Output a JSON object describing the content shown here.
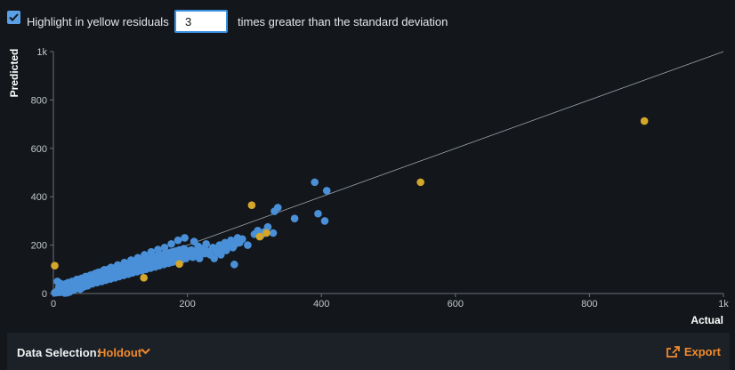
{
  "toolbar": {
    "highlight_checked": true,
    "highlight_label": "Highlight in yellow residuals",
    "sd_value": "3",
    "sd_suffix": "times greater than the standard deviation"
  },
  "footer": {
    "data_selection_label": "Data Selection:",
    "data_selection_value": "Holdout",
    "export_label": "Export",
    "accent_color": "#f08a2c"
  },
  "chart_data": {
    "type": "scatter",
    "title": "",
    "xlabel": "Actual",
    "ylabel": "Predicted",
    "xlim": [
      0,
      1000
    ],
    "ylim": [
      0,
      1000
    ],
    "x_ticks": [
      "0",
      "200",
      "400",
      "600",
      "800",
      "1k"
    ],
    "y_ticks": [
      "0",
      "200",
      "400",
      "600",
      "800",
      "1k"
    ],
    "grid": false,
    "reference_line": {
      "from": [
        0,
        0
      ],
      "to": [
        1000,
        1000
      ]
    },
    "series": [
      {
        "color": "#4a90d9",
        "points": [
          [
            2,
            3
          ],
          [
            3,
            6
          ],
          [
            5,
            4
          ],
          [
            6,
            10
          ],
          [
            8,
            7
          ],
          [
            9,
            14
          ],
          [
            10,
            5
          ],
          [
            12,
            11
          ],
          [
            13,
            18
          ],
          [
            14,
            9
          ],
          [
            15,
            15
          ],
          [
            16,
            22
          ],
          [
            18,
            12
          ],
          [
            19,
            20
          ],
          [
            20,
            26
          ],
          [
            21,
            16
          ],
          [
            22,
            30
          ],
          [
            23,
            19
          ],
          [
            24,
            24
          ],
          [
            25,
            34
          ],
          [
            26,
            21
          ],
          [
            27,
            29
          ],
          [
            28,
            38
          ],
          [
            29,
            25
          ],
          [
            30,
            33
          ],
          [
            31,
            42
          ],
          [
            32,
            28
          ],
          [
            33,
            37
          ],
          [
            34,
            46
          ],
          [
            35,
            31
          ],
          [
            36,
            40
          ],
          [
            37,
            50
          ],
          [
            38,
            34
          ],
          [
            39,
            44
          ],
          [
            40,
            54
          ],
          [
            41,
            37
          ],
          [
            42,
            48
          ],
          [
            43,
            58
          ],
          [
            44,
            41
          ],
          [
            45,
            52
          ],
          [
            46,
            62
          ],
          [
            47,
            44
          ],
          [
            48,
            55
          ],
          [
            49,
            66
          ],
          [
            50,
            47
          ],
          [
            52,
            60
          ],
          [
            54,
            68
          ],
          [
            55,
            50
          ],
          [
            56,
            64
          ],
          [
            58,
            72
          ],
          [
            60,
            55
          ],
          [
            62,
            70
          ],
          [
            64,
            77
          ],
          [
            65,
            58
          ],
          [
            66,
            74
          ],
          [
            68,
            82
          ],
          [
            70,
            62
          ],
          [
            72,
            78
          ],
          [
            74,
            86
          ],
          [
            75,
            66
          ],
          [
            76,
            82
          ],
          [
            78,
            90
          ],
          [
            80,
            70
          ],
          [
            82,
            86
          ],
          [
            84,
            95
          ],
          [
            85,
            73
          ],
          [
            86,
            90
          ],
          [
            88,
            99
          ],
          [
            90,
            78
          ],
          [
            92,
            94
          ],
          [
            94,
            103
          ],
          [
            95,
            82
          ],
          [
            96,
            98
          ],
          [
            98,
            108
          ],
          [
            100,
            86
          ],
          [
            102,
            102
          ],
          [
            104,
            112
          ],
          [
            105,
            90
          ],
          [
            106,
            106
          ],
          [
            108,
            116
          ],
          [
            110,
            94
          ],
          [
            112,
            110
          ],
          [
            114,
            120
          ],
          [
            115,
            98
          ],
          [
            116,
            114
          ],
          [
            118,
            124
          ],
          [
            120,
            102
          ],
          [
            122,
            118
          ],
          [
            124,
            128
          ],
          [
            125,
            106
          ],
          [
            126,
            122
          ],
          [
            128,
            132
          ],
          [
            130,
            110
          ],
          [
            132,
            126
          ],
          [
            134,
            136
          ],
          [
            135,
            114
          ],
          [
            136,
            130
          ],
          [
            138,
            140
          ],
          [
            140,
            118
          ],
          [
            142,
            134
          ],
          [
            144,
            144
          ],
          [
            145,
            122
          ],
          [
            146,
            138
          ],
          [
            148,
            148
          ],
          [
            150,
            126
          ],
          [
            152,
            142
          ],
          [
            154,
            152
          ],
          [
            155,
            130
          ],
          [
            156,
            146
          ],
          [
            158,
            156
          ],
          [
            160,
            134
          ],
          [
            162,
            150
          ],
          [
            164,
            160
          ],
          [
            165,
            138
          ],
          [
            166,
            154
          ],
          [
            168,
            164
          ],
          [
            170,
            142
          ],
          [
            172,
            158
          ],
          [
            174,
            168
          ],
          [
            175,
            146
          ],
          [
            176,
            162
          ],
          [
            178,
            172
          ],
          [
            180,
            150
          ],
          [
            182,
            166
          ],
          [
            184,
            176
          ],
          [
            185,
            154
          ],
          [
            186,
            170
          ],
          [
            188,
            180
          ],
          [
            190,
            158
          ],
          [
            192,
            174
          ],
          [
            194,
            184
          ],
          [
            196,
            162
          ],
          [
            198,
            178
          ],
          [
            8,
            25
          ],
          [
            12,
            28
          ],
          [
            15,
            32
          ],
          [
            18,
            40
          ],
          [
            22,
            45
          ],
          [
            25,
            20
          ],
          [
            28,
            50
          ],
          [
            32,
            18
          ],
          [
            35,
            58
          ],
          [
            38,
            25
          ],
          [
            42,
            63
          ],
          [
            45,
            30
          ],
          [
            48,
            70
          ],
          [
            52,
            35
          ],
          [
            55,
            75
          ],
          [
            58,
            40
          ],
          [
            62,
            82
          ],
          [
            65,
            45
          ],
          [
            68,
            88
          ],
          [
            72,
            50
          ],
          [
            75,
            95
          ],
          [
            78,
            55
          ],
          [
            82,
            100
          ],
          [
            85,
            60
          ],
          [
            88,
            105
          ],
          [
            92,
            65
          ],
          [
            95,
            110
          ],
          [
            98,
            70
          ],
          [
            102,
            115
          ],
          [
            105,
            75
          ],
          [
            108,
            120
          ],
          [
            112,
            80
          ],
          [
            115,
            125
          ],
          [
            118,
            85
          ],
          [
            122,
            130
          ],
          [
            125,
            90
          ],
          [
            128,
            135
          ],
          [
            132,
            95
          ],
          [
            135,
            140
          ],
          [
            138,
            100
          ],
          [
            142,
            145
          ],
          [
            145,
            105
          ],
          [
            148,
            150
          ],
          [
            152,
            110
          ],
          [
            155,
            155
          ],
          [
            158,
            115
          ],
          [
            162,
            160
          ],
          [
            165,
            120
          ],
          [
            168,
            165
          ],
          [
            172,
            125
          ],
          [
            175,
            170
          ],
          [
            178,
            130
          ],
          [
            182,
            175
          ],
          [
            185,
            135
          ],
          [
            188,
            180
          ],
          [
            192,
            140
          ],
          [
            195,
            185
          ],
          [
            198,
            145
          ],
          [
            6,
            50
          ],
          [
            10,
            42
          ],
          [
            14,
            8
          ],
          [
            17,
            2
          ],
          [
            20,
            3
          ],
          [
            24,
            6
          ],
          [
            27,
            12
          ],
          [
            30,
            14
          ],
          [
            33,
            20
          ],
          [
            36,
            22
          ],
          [
            40,
            18
          ],
          [
            44,
            26
          ],
          [
            47,
            30
          ],
          [
            51,
            32
          ],
          [
            54,
            40
          ],
          [
            57,
            44
          ],
          [
            61,
            48
          ],
          [
            64,
            52
          ],
          [
            67,
            56
          ],
          [
            70,
            60
          ],
          [
            73,
            64
          ],
          [
            77,
            68
          ],
          [
            80,
            74
          ],
          [
            83,
            78
          ],
          [
            87,
            84
          ],
          [
            91,
            88
          ],
          [
            94,
            92
          ],
          [
            97,
            96
          ],
          [
            200,
            155
          ],
          [
            203,
            168
          ],
          [
            206,
            180
          ],
          [
            208,
            150
          ],
          [
            212,
            160
          ],
          [
            215,
            175
          ],
          [
            218,
            145
          ],
          [
            220,
            170
          ],
          [
            222,
            185
          ],
          [
            226,
            165
          ],
          [
            230,
            175
          ],
          [
            234,
            160
          ],
          [
            238,
            190
          ],
          [
            242,
            180
          ],
          [
            245,
            170
          ],
          [
            248,
            200
          ],
          [
            252,
            188
          ],
          [
            256,
            210
          ],
          [
            258,
            178
          ],
          [
            262,
            195
          ],
          [
            265,
            220
          ],
          [
            268,
            190
          ],
          [
            272,
            205
          ],
          [
            275,
            230
          ],
          [
            278,
            210
          ],
          [
            282,
            225
          ],
          [
            290,
            200
          ],
          [
            300,
            245
          ],
          [
            305,
            260
          ],
          [
            310,
            240
          ],
          [
            315,
            255
          ],
          [
            320,
            275
          ],
          [
            328,
            250
          ],
          [
            330,
            340
          ],
          [
            335,
            355
          ],
          [
            360,
            310
          ],
          [
            390,
            460
          ],
          [
            408,
            425
          ],
          [
            395,
            330
          ],
          [
            405,
            300
          ],
          [
            270,
            120
          ],
          [
            250,
            160
          ],
          [
            240,
            145
          ],
          [
            228,
            205
          ],
          [
            216,
            195
          ],
          [
            210,
            215
          ],
          [
            196,
            230
          ],
          [
            186,
            220
          ],
          [
            176,
            205
          ],
          [
            166,
            190
          ],
          [
            156,
            182
          ],
          [
            146,
            172
          ],
          [
            136,
            160
          ],
          [
            126,
            148
          ],
          [
            116,
            138
          ],
          [
            106,
            128
          ],
          [
            96,
            118
          ],
          [
            86,
            108
          ],
          [
            76,
            98
          ],
          [
            66,
            86
          ],
          [
            56,
            76
          ],
          [
            46,
            64
          ],
          [
            36,
            52
          ],
          [
            26,
            40
          ],
          [
            16,
            28
          ]
        ]
      },
      {
        "color": "#d4a62a",
        "points": [
          [
            2,
            115
          ],
          [
            135,
            65
          ],
          [
            188,
            122
          ],
          [
            296,
            365
          ],
          [
            308,
            235
          ],
          [
            318,
            250
          ],
          [
            548,
            460
          ],
          [
            882,
            713
          ]
        ]
      }
    ]
  }
}
